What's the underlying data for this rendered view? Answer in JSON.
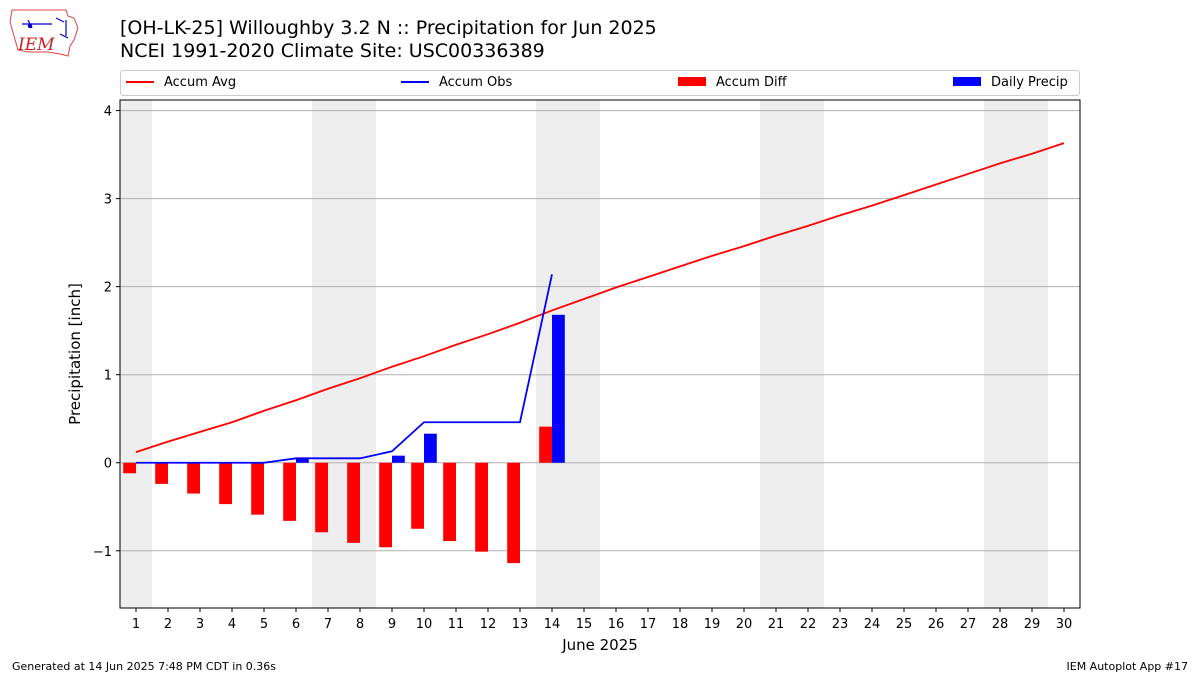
{
  "header": {
    "title_line1": "[OH-LK-25] Willoughby 3.2 N :: Precipitation for Jun 2025",
    "title_line2": "NCEI 1991-2020 Climate Site: USC00336389",
    "logo_text": "IEM"
  },
  "footer": {
    "left": "Generated at 14 Jun 2025 7:48 PM CDT in 0.36s",
    "right": "IEM Autoplot App #17"
  },
  "colors": {
    "avg": "#ff0000",
    "obs": "#0000ff",
    "diff": "#ff0000",
    "daily": "#0000ff",
    "weekend": "#eeeeee",
    "grid": "#b0b0b0"
  },
  "chart_data": {
    "type": "bar",
    "xlabel": "June 2025",
    "ylabel": "Precipitation [inch]",
    "xlim": [
      0.5,
      30.5
    ],
    "ylim": [
      -1.65,
      4.12
    ],
    "yticks": [
      -1,
      0,
      1,
      2,
      3,
      4
    ],
    "xticks": [
      1,
      2,
      3,
      4,
      5,
      6,
      7,
      8,
      9,
      10,
      11,
      12,
      13,
      14,
      15,
      16,
      17,
      18,
      19,
      20,
      21,
      22,
      23,
      24,
      25,
      26,
      27,
      28,
      29,
      30
    ],
    "grid": "y",
    "legend_position": "top",
    "legend": [
      "Accum Avg",
      "Accum Obs",
      "Accum Diff",
      "Daily Precip"
    ],
    "weekend_shading": [
      [
        0.5,
        1.5
      ],
      [
        6.5,
        8.5
      ],
      [
        13.5,
        15.5
      ],
      [
        20.5,
        22.5
      ],
      [
        27.5,
        29.5
      ]
    ],
    "days": [
      1,
      2,
      3,
      4,
      5,
      6,
      7,
      8,
      9,
      10,
      11,
      12,
      13,
      14,
      15,
      16,
      17,
      18,
      19,
      20,
      21,
      22,
      23,
      24,
      25,
      26,
      27,
      28,
      29,
      30
    ],
    "series": [
      {
        "name": "Accum Avg",
        "kind": "line",
        "values": [
          0.12,
          0.24,
          0.35,
          0.46,
          0.59,
          0.71,
          0.84,
          0.96,
          1.09,
          1.21,
          1.34,
          1.46,
          1.59,
          1.73,
          1.86,
          1.99,
          2.11,
          2.23,
          2.35,
          2.46,
          2.58,
          2.69,
          2.81,
          2.92,
          3.04,
          3.16,
          3.28,
          3.4,
          3.51,
          3.63
        ]
      },
      {
        "name": "Accum Obs",
        "kind": "line",
        "values": [
          0.0,
          0.0,
          0.0,
          0.0,
          0.0,
          0.05,
          0.05,
          0.05,
          0.13,
          0.46,
          0.46,
          0.46,
          0.46,
          2.14
        ]
      },
      {
        "name": "Accum Diff",
        "kind": "bar",
        "values": [
          -0.12,
          -0.24,
          -0.35,
          -0.47,
          -0.59,
          -0.66,
          -0.79,
          -0.91,
          -0.96,
          -0.75,
          -0.89,
          -1.01,
          -1.14,
          0.41
        ]
      },
      {
        "name": "Daily Precip",
        "kind": "bar",
        "values": [
          0.0,
          0.0,
          0.0,
          0.0,
          0.0,
          0.05,
          0.0,
          0.0,
          0.08,
          0.33,
          0.0,
          0.0,
          0.0,
          1.68
        ]
      }
    ]
  }
}
